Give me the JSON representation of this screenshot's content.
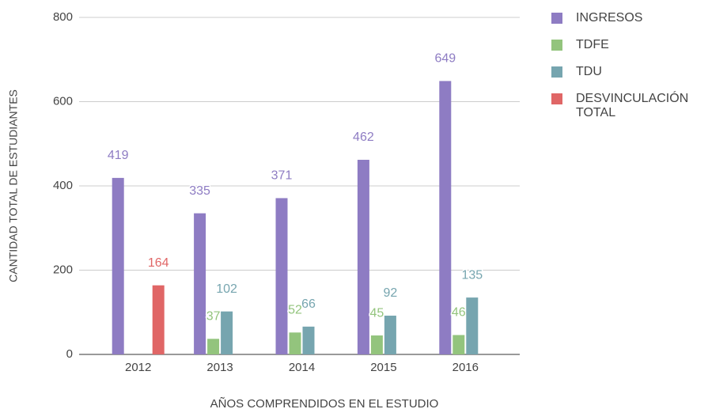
{
  "chart_data": {
    "type": "bar",
    "categories": [
      "2012",
      "2013",
      "2014",
      "2015",
      "2016"
    ],
    "series": [
      {
        "name": "INGRESOS",
        "color": "#8e7cc3",
        "values": [
          419,
          335,
          371,
          462,
          649
        ]
      },
      {
        "name": "TDFE",
        "color": "#93c47d",
        "values": [
          null,
          37,
          52,
          45,
          46
        ]
      },
      {
        "name": "TDU",
        "color": "#76a5af",
        "values": [
          null,
          102,
          66,
          92,
          135
        ]
      },
      {
        "name": "DESVINCULACIÓN TOTAL",
        "color": "#e06666",
        "values": [
          164,
          null,
          null,
          null,
          null
        ]
      }
    ],
    "ylim": [
      0,
      800
    ],
    "yticks": [
      0,
      200,
      400,
      600,
      800
    ],
    "grid": true,
    "xlabel": "AÑOS COMPRENDIDOS EN EL ESTUDIO",
    "ylabel": "CANTIDAD TOTAL DE ESTUDIANTES",
    "legend": "right"
  }
}
